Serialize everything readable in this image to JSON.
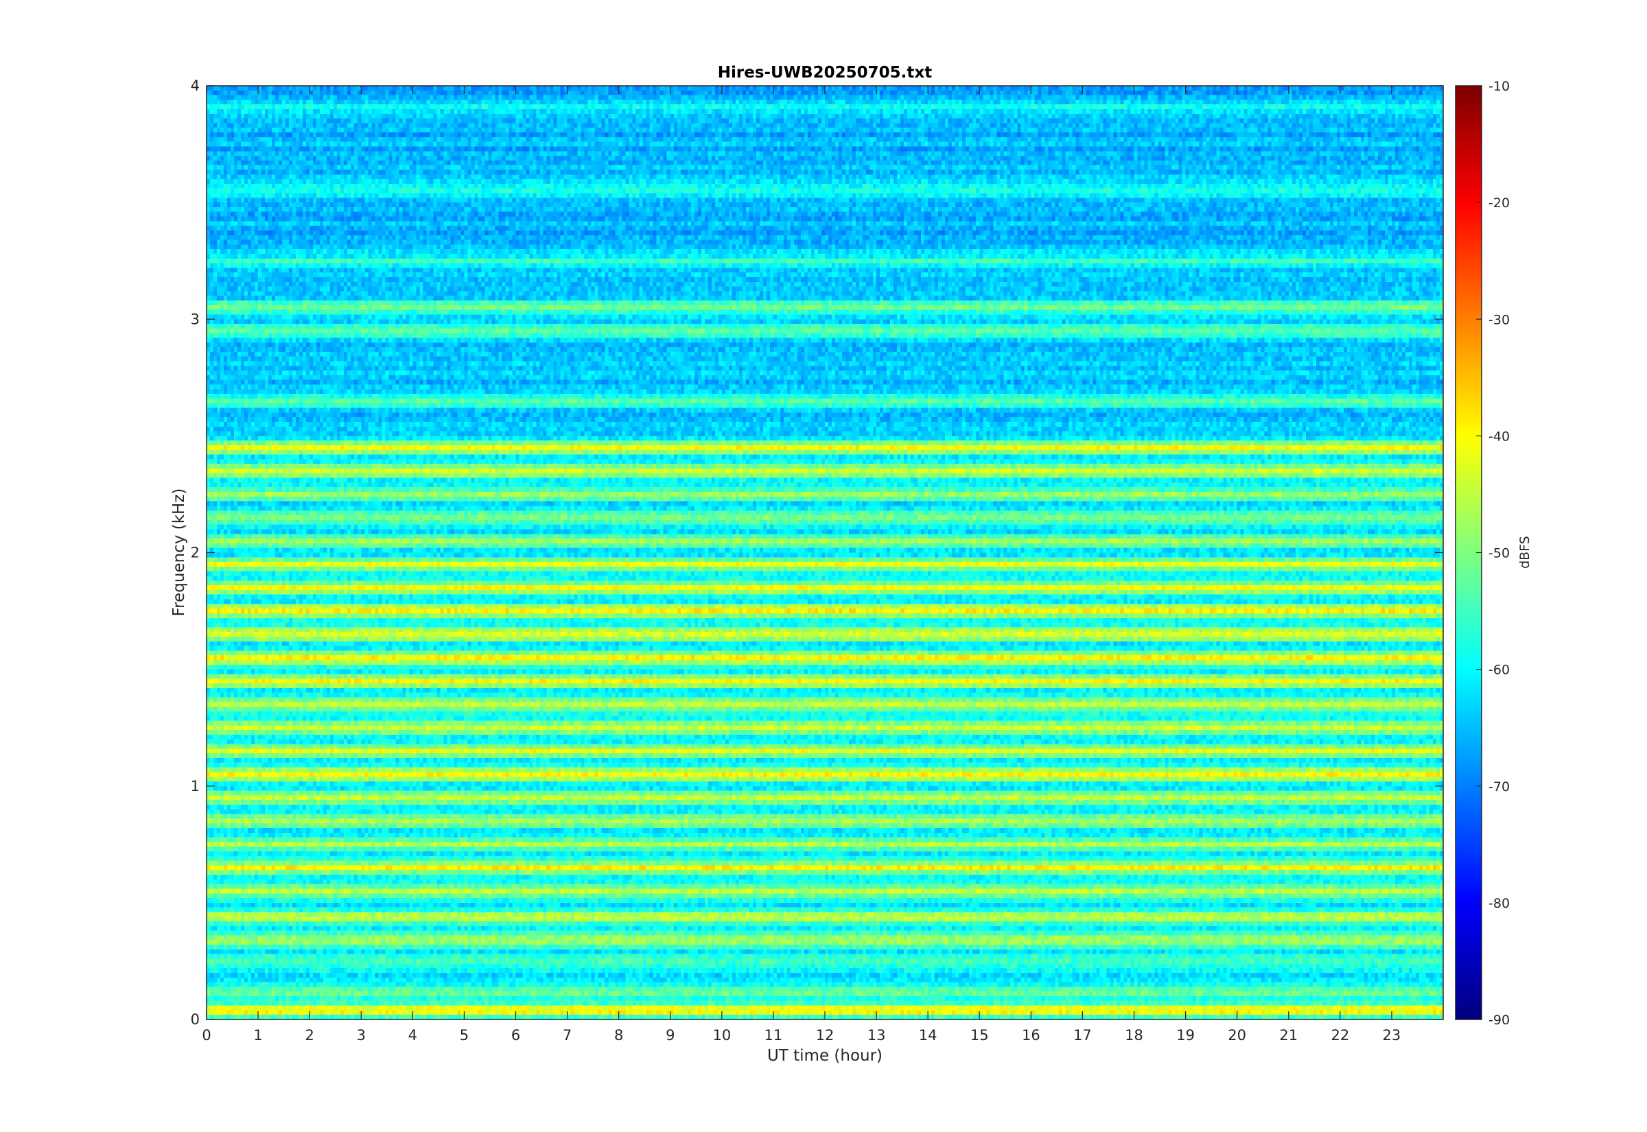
{
  "chart_data": {
    "type": "heatmap",
    "title": "Hires-UWB20250705.txt",
    "xlabel": "UT time (hour)",
    "ylabel": "Frequency (kHz)",
    "colorbar_label": "dBFS",
    "colormap": "jet",
    "xlim": [
      0,
      24
    ],
    "ylim": [
      0,
      4
    ],
    "clim": [
      -90,
      -10
    ],
    "x_ticks": [
      "0",
      "1",
      "2",
      "3",
      "4",
      "5",
      "6",
      "7",
      "8",
      "9",
      "10",
      "11",
      "12",
      "13",
      "14",
      "15",
      "16",
      "17",
      "18",
      "19",
      "20",
      "21",
      "22",
      "23"
    ],
    "y_ticks": [
      "0",
      "1",
      "2",
      "3",
      "4"
    ],
    "colorbar_ticks": [
      "-10",
      "-20",
      "-30",
      "-40",
      "-50",
      "-60",
      "-70",
      "-80",
      "-90"
    ],
    "frequency_bands": [
      {
        "f_khz": 0.04,
        "level_dbfs": -40
      },
      {
        "f_khz": 0.12,
        "level_dbfs": -52
      },
      {
        "f_khz": 0.25,
        "level_dbfs": -53
      },
      {
        "f_khz": 0.34,
        "level_dbfs": -45
      },
      {
        "f_khz": 0.44,
        "level_dbfs": -44
      },
      {
        "f_khz": 0.55,
        "level_dbfs": -44
      },
      {
        "f_khz": 0.65,
        "level_dbfs": -41
      },
      {
        "f_khz": 0.75,
        "level_dbfs": -46
      },
      {
        "f_khz": 0.85,
        "level_dbfs": -46
      },
      {
        "f_khz": 0.95,
        "level_dbfs": -45
      },
      {
        "f_khz": 1.05,
        "level_dbfs": -40
      },
      {
        "f_khz": 1.15,
        "level_dbfs": -43
      },
      {
        "f_khz": 1.25,
        "level_dbfs": -44
      },
      {
        "f_khz": 1.35,
        "level_dbfs": -44
      },
      {
        "f_khz": 1.45,
        "level_dbfs": -42
      },
      {
        "f_khz": 1.55,
        "level_dbfs": -40
      },
      {
        "f_khz": 1.65,
        "level_dbfs": -41
      },
      {
        "f_khz": 1.75,
        "level_dbfs": -39
      },
      {
        "f_khz": 1.85,
        "level_dbfs": -42
      },
      {
        "f_khz": 1.95,
        "level_dbfs": -43
      },
      {
        "f_khz": 2.05,
        "level_dbfs": -48
      },
      {
        "f_khz": 2.15,
        "level_dbfs": -49
      },
      {
        "f_khz": 2.25,
        "level_dbfs": -49
      },
      {
        "f_khz": 2.35,
        "level_dbfs": -44
      },
      {
        "f_khz": 2.45,
        "level_dbfs": -42
      },
      {
        "f_khz": 2.65,
        "level_dbfs": -54
      },
      {
        "f_khz": 2.95,
        "level_dbfs": -53
      },
      {
        "f_khz": 3.05,
        "level_dbfs": -52
      },
      {
        "f_khz": 3.25,
        "level_dbfs": -56
      },
      {
        "f_khz": 3.55,
        "level_dbfs": -58
      },
      {
        "f_khz": 3.9,
        "level_dbfs": -60
      }
    ]
  }
}
